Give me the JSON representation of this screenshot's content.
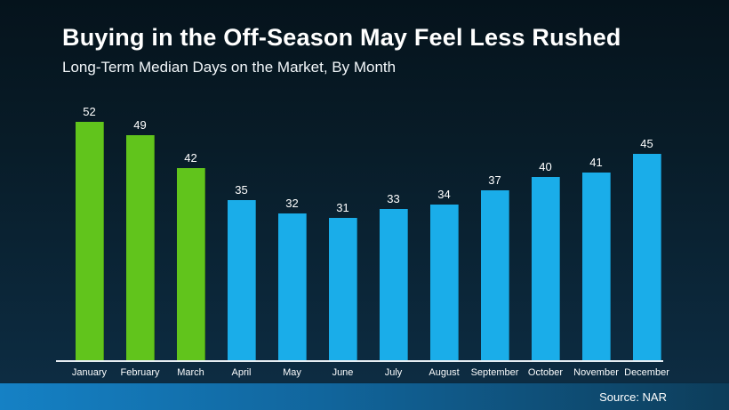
{
  "header": {
    "title": "Buying in the Off-Season May Feel Less Rushed",
    "subtitle": "Long-Term Median Days on the Market, By Month"
  },
  "chart_data": {
    "type": "bar",
    "title": "Buying in the Off-Season May Feel Less Rushed",
    "subtitle": "Long-Term Median Days on the Market, By Month",
    "categories": [
      "January",
      "February",
      "March",
      "April",
      "May",
      "June",
      "July",
      "August",
      "September",
      "October",
      "November",
      "December"
    ],
    "values": [
      52,
      49,
      42,
      35,
      32,
      31,
      33,
      34,
      37,
      40,
      41,
      45
    ],
    "bar_colors": [
      "#61c41c",
      "#61c41c",
      "#61c41c",
      "#1aade9",
      "#1aade9",
      "#1aade9",
      "#1aade9",
      "#1aade9",
      "#1aade9",
      "#1aade9",
      "#1aade9",
      "#1aade9"
    ],
    "highlight_months": [
      "January",
      "February",
      "March"
    ],
    "xlabel": "",
    "ylabel": "",
    "ylim": [
      0,
      55
    ],
    "grid": false,
    "legend": false,
    "data_labels": true,
    "palette": {
      "off_season_green": "#61c41c",
      "in_season_blue": "#1aade9",
      "background_top": "#05131c",
      "background_bottom": "#0d2c42",
      "baseline": "#e6edf2",
      "footer_band_left": "#1581c5",
      "footer_band_right": "#0d3d5a",
      "text": "#ffffff"
    }
  },
  "footer": {
    "source_label": "Source: NAR"
  }
}
